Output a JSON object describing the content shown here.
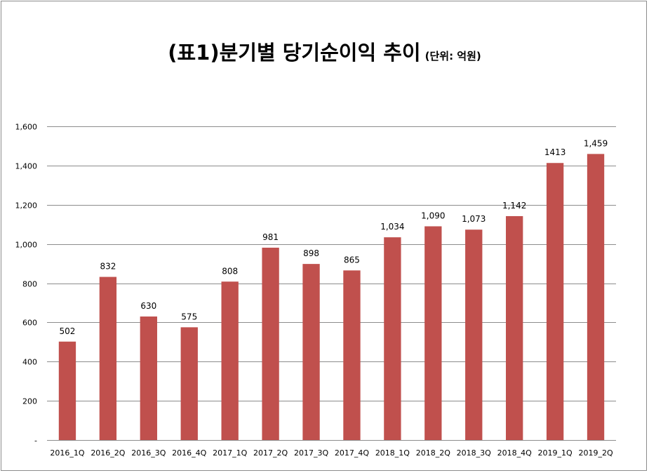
{
  "chart_data": {
    "type": "bar",
    "title": "(표1)분기별 당기순이익 추이",
    "subtitle": "(단위: 억원)",
    "categories": [
      "2016_1Q",
      "2016_2Q",
      "2016_3Q",
      "2016_4Q",
      "2017_1Q",
      "2017_2Q",
      "2017_3Q",
      "2017_4Q",
      "2018_1Q",
      "2018_2Q",
      "2018_3Q",
      "2018_4Q",
      "2019_1Q",
      "2019_2Q"
    ],
    "values": [
      502,
      832,
      630,
      575,
      808,
      981,
      898,
      865,
      1034,
      1090,
      1073,
      1142,
      1413,
      1459
    ],
    "data_labels": [
      "502",
      "832",
      "630",
      "575",
      "808",
      "981",
      "898",
      "865",
      "1,034",
      "1,090",
      "1,073",
      "1,142",
      "1413",
      "1,459"
    ],
    "y_ticks": [
      0,
      200,
      400,
      600,
      800,
      1000,
      1200,
      1400,
      1600
    ],
    "y_tick_labels": [
      "-",
      "200",
      "400",
      "600",
      "800",
      "1,000",
      "1,200",
      "1,400",
      "1,600"
    ],
    "ylim": [
      0,
      1600
    ],
    "grid": true,
    "legend": "none",
    "bar_color": "#c0504d",
    "grid_color": "#8c8c8c"
  }
}
